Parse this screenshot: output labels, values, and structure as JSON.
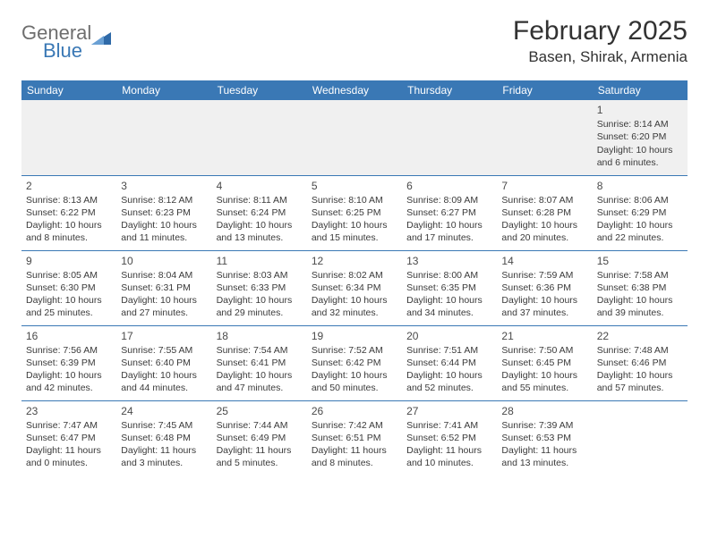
{
  "logo": {
    "word1": "General",
    "word2": "Blue"
  },
  "title": "February 2025",
  "location": "Basen, Shirak, Armenia",
  "header_bg": "#3a78b5",
  "header_fg": "#ffffff",
  "border_color": "#3a78b5",
  "alt_row_bg": "#f0f0f0",
  "day_headers": [
    "Sunday",
    "Monday",
    "Tuesday",
    "Wednesday",
    "Thursday",
    "Friday",
    "Saturday"
  ],
  "weeks": [
    [
      null,
      null,
      null,
      null,
      null,
      null,
      {
        "n": "1",
        "sr": "Sunrise: 8:14 AM",
        "ss": "Sunset: 6:20 PM",
        "d1": "Daylight: 10 hours",
        "d2": "and 6 minutes."
      }
    ],
    [
      {
        "n": "2",
        "sr": "Sunrise: 8:13 AM",
        "ss": "Sunset: 6:22 PM",
        "d1": "Daylight: 10 hours",
        "d2": "and 8 minutes."
      },
      {
        "n": "3",
        "sr": "Sunrise: 8:12 AM",
        "ss": "Sunset: 6:23 PM",
        "d1": "Daylight: 10 hours",
        "d2": "and 11 minutes."
      },
      {
        "n": "4",
        "sr": "Sunrise: 8:11 AM",
        "ss": "Sunset: 6:24 PM",
        "d1": "Daylight: 10 hours",
        "d2": "and 13 minutes."
      },
      {
        "n": "5",
        "sr": "Sunrise: 8:10 AM",
        "ss": "Sunset: 6:25 PM",
        "d1": "Daylight: 10 hours",
        "d2": "and 15 minutes."
      },
      {
        "n": "6",
        "sr": "Sunrise: 8:09 AM",
        "ss": "Sunset: 6:27 PM",
        "d1": "Daylight: 10 hours",
        "d2": "and 17 minutes."
      },
      {
        "n": "7",
        "sr": "Sunrise: 8:07 AM",
        "ss": "Sunset: 6:28 PM",
        "d1": "Daylight: 10 hours",
        "d2": "and 20 minutes."
      },
      {
        "n": "8",
        "sr": "Sunrise: 8:06 AM",
        "ss": "Sunset: 6:29 PM",
        "d1": "Daylight: 10 hours",
        "d2": "and 22 minutes."
      }
    ],
    [
      {
        "n": "9",
        "sr": "Sunrise: 8:05 AM",
        "ss": "Sunset: 6:30 PM",
        "d1": "Daylight: 10 hours",
        "d2": "and 25 minutes."
      },
      {
        "n": "10",
        "sr": "Sunrise: 8:04 AM",
        "ss": "Sunset: 6:31 PM",
        "d1": "Daylight: 10 hours",
        "d2": "and 27 minutes."
      },
      {
        "n": "11",
        "sr": "Sunrise: 8:03 AM",
        "ss": "Sunset: 6:33 PM",
        "d1": "Daylight: 10 hours",
        "d2": "and 29 minutes."
      },
      {
        "n": "12",
        "sr": "Sunrise: 8:02 AM",
        "ss": "Sunset: 6:34 PM",
        "d1": "Daylight: 10 hours",
        "d2": "and 32 minutes."
      },
      {
        "n": "13",
        "sr": "Sunrise: 8:00 AM",
        "ss": "Sunset: 6:35 PM",
        "d1": "Daylight: 10 hours",
        "d2": "and 34 minutes."
      },
      {
        "n": "14",
        "sr": "Sunrise: 7:59 AM",
        "ss": "Sunset: 6:36 PM",
        "d1": "Daylight: 10 hours",
        "d2": "and 37 minutes."
      },
      {
        "n": "15",
        "sr": "Sunrise: 7:58 AM",
        "ss": "Sunset: 6:38 PM",
        "d1": "Daylight: 10 hours",
        "d2": "and 39 minutes."
      }
    ],
    [
      {
        "n": "16",
        "sr": "Sunrise: 7:56 AM",
        "ss": "Sunset: 6:39 PM",
        "d1": "Daylight: 10 hours",
        "d2": "and 42 minutes."
      },
      {
        "n": "17",
        "sr": "Sunrise: 7:55 AM",
        "ss": "Sunset: 6:40 PM",
        "d1": "Daylight: 10 hours",
        "d2": "and 44 minutes."
      },
      {
        "n": "18",
        "sr": "Sunrise: 7:54 AM",
        "ss": "Sunset: 6:41 PM",
        "d1": "Daylight: 10 hours",
        "d2": "and 47 minutes."
      },
      {
        "n": "19",
        "sr": "Sunrise: 7:52 AM",
        "ss": "Sunset: 6:42 PM",
        "d1": "Daylight: 10 hours",
        "d2": "and 50 minutes."
      },
      {
        "n": "20",
        "sr": "Sunrise: 7:51 AM",
        "ss": "Sunset: 6:44 PM",
        "d1": "Daylight: 10 hours",
        "d2": "and 52 minutes."
      },
      {
        "n": "21",
        "sr": "Sunrise: 7:50 AM",
        "ss": "Sunset: 6:45 PM",
        "d1": "Daylight: 10 hours",
        "d2": "and 55 minutes."
      },
      {
        "n": "22",
        "sr": "Sunrise: 7:48 AM",
        "ss": "Sunset: 6:46 PM",
        "d1": "Daylight: 10 hours",
        "d2": "and 57 minutes."
      }
    ],
    [
      {
        "n": "23",
        "sr": "Sunrise: 7:47 AM",
        "ss": "Sunset: 6:47 PM",
        "d1": "Daylight: 11 hours",
        "d2": "and 0 minutes."
      },
      {
        "n": "24",
        "sr": "Sunrise: 7:45 AM",
        "ss": "Sunset: 6:48 PM",
        "d1": "Daylight: 11 hours",
        "d2": "and 3 minutes."
      },
      {
        "n": "25",
        "sr": "Sunrise: 7:44 AM",
        "ss": "Sunset: 6:49 PM",
        "d1": "Daylight: 11 hours",
        "d2": "and 5 minutes."
      },
      {
        "n": "26",
        "sr": "Sunrise: 7:42 AM",
        "ss": "Sunset: 6:51 PM",
        "d1": "Daylight: 11 hours",
        "d2": "and 8 minutes."
      },
      {
        "n": "27",
        "sr": "Sunrise: 7:41 AM",
        "ss": "Sunset: 6:52 PM",
        "d1": "Daylight: 11 hours",
        "d2": "and 10 minutes."
      },
      {
        "n": "28",
        "sr": "Sunrise: 7:39 AM",
        "ss": "Sunset: 6:53 PM",
        "d1": "Daylight: 11 hours",
        "d2": "and 13 minutes."
      },
      null
    ]
  ]
}
